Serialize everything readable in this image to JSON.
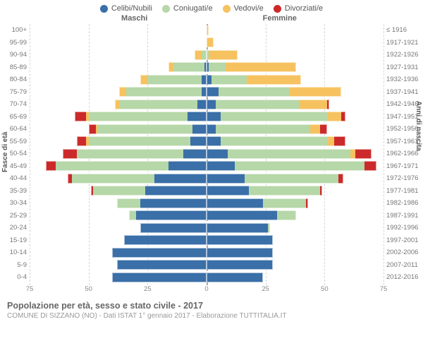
{
  "legend": [
    {
      "label": "Celibi/Nubili",
      "color": "#3a6fa8"
    },
    {
      "label": "Coniugati/e",
      "color": "#b6d7a8"
    },
    {
      "label": "Vedovi/e",
      "color": "#f6c260"
    },
    {
      "label": "Divorziati/e",
      "color": "#cc2a2a"
    }
  ],
  "headers": {
    "male": "Maschi",
    "female": "Femmine"
  },
  "y_title_left": "Fasce di età",
  "y_title_right": "Anni di nascita",
  "x_ticks": [
    75,
    50,
    25,
    0,
    25,
    50,
    75
  ],
  "x_max": 75,
  "title": "Popolazione per età, sesso e stato civile - 2017",
  "subtitle": "COMUNE DI SIZZANO (NO) - Dati ISTAT 1° gennaio 2017 - Elaborazione TUTTITALIA.IT",
  "rows": [
    {
      "age": "100+",
      "birth": "≤ 1916",
      "m": [
        0,
        0,
        0,
        0
      ],
      "f": [
        0,
        0,
        1,
        0
      ]
    },
    {
      "age": "95-99",
      "birth": "1917-1921",
      "m": [
        0,
        0,
        0,
        0
      ],
      "f": [
        0,
        0,
        3,
        0
      ]
    },
    {
      "age": "90-94",
      "birth": "1922-1926",
      "m": [
        0,
        2,
        3,
        0
      ],
      "f": [
        0,
        1,
        12,
        0
      ]
    },
    {
      "age": "85-89",
      "birth": "1927-1931",
      "m": [
        1,
        13,
        2,
        0
      ],
      "f": [
        1,
        7,
        30,
        0
      ]
    },
    {
      "age": "80-84",
      "birth": "1932-1936",
      "m": [
        2,
        23,
        3,
        0
      ],
      "f": [
        2,
        15,
        23,
        0
      ]
    },
    {
      "age": "75-79",
      "birth": "1937-1941",
      "m": [
        2,
        32,
        3,
        0
      ],
      "f": [
        5,
        30,
        22,
        0
      ]
    },
    {
      "age": "70-74",
      "birth": "1942-1946",
      "m": [
        4,
        33,
        2,
        0
      ],
      "f": [
        4,
        35,
        12,
        1
      ]
    },
    {
      "age": "65-69",
      "birth": "1947-1951",
      "m": [
        8,
        42,
        1,
        5
      ],
      "f": [
        6,
        45,
        6,
        2
      ]
    },
    {
      "age": "60-64",
      "birth": "1952-1956",
      "m": [
        6,
        40,
        1,
        3
      ],
      "f": [
        4,
        40,
        4,
        3
      ]
    },
    {
      "age": "55-59",
      "birth": "1957-1961",
      "m": [
        7,
        43,
        1,
        4
      ],
      "f": [
        6,
        45,
        3,
        5
      ]
    },
    {
      "age": "50-54",
      "birth": "1962-1966",
      "m": [
        10,
        45,
        0,
        6
      ],
      "f": [
        9,
        52,
        2,
        7
      ]
    },
    {
      "age": "45-49",
      "birth": "1967-1971",
      "m": [
        16,
        48,
        0,
        4
      ],
      "f": [
        12,
        55,
        0,
        5
      ]
    },
    {
      "age": "40-44",
      "birth": "1972-1976",
      "m": [
        22,
        35,
        0,
        2
      ],
      "f": [
        16,
        40,
        0,
        2
      ]
    },
    {
      "age": "35-39",
      "birth": "1977-1981",
      "m": [
        26,
        22,
        0,
        1
      ],
      "f": [
        18,
        30,
        0,
        1
      ]
    },
    {
      "age": "30-34",
      "birth": "1982-1986",
      "m": [
        28,
        10,
        0,
        0
      ],
      "f": [
        24,
        18,
        0,
        1
      ]
    },
    {
      "age": "25-29",
      "birth": "1987-1991",
      "m": [
        30,
        3,
        0,
        0
      ],
      "f": [
        30,
        8,
        0,
        0
      ]
    },
    {
      "age": "20-24",
      "birth": "1992-1996",
      "m": [
        28,
        0,
        0,
        0
      ],
      "f": [
        26,
        1,
        0,
        0
      ]
    },
    {
      "age": "15-19",
      "birth": "1997-2001",
      "m": [
        35,
        0,
        0,
        0
      ],
      "f": [
        28,
        0,
        0,
        0
      ]
    },
    {
      "age": "10-14",
      "birth": "2002-2006",
      "m": [
        40,
        0,
        0,
        0
      ],
      "f": [
        28,
        0,
        0,
        0
      ]
    },
    {
      "age": "5-9",
      "birth": "2007-2011",
      "m": [
        38,
        0,
        0,
        0
      ],
      "f": [
        28,
        0,
        0,
        0
      ]
    },
    {
      "age": "0-4",
      "birth": "2012-2016",
      "m": [
        40,
        0,
        0,
        0
      ],
      "f": [
        24,
        0,
        0,
        0
      ]
    }
  ],
  "colors": {
    "single": "#3a6fa8",
    "married": "#b6d7a8",
    "widowed": "#f6c260",
    "divorced": "#cc2a2a",
    "grid": "#d0d0d0",
    "bg": "#ffffff",
    "text": "#666666"
  },
  "fontsize": {
    "tick": 9.5,
    "legend": 11,
    "title": 13,
    "subtitle": 10
  }
}
